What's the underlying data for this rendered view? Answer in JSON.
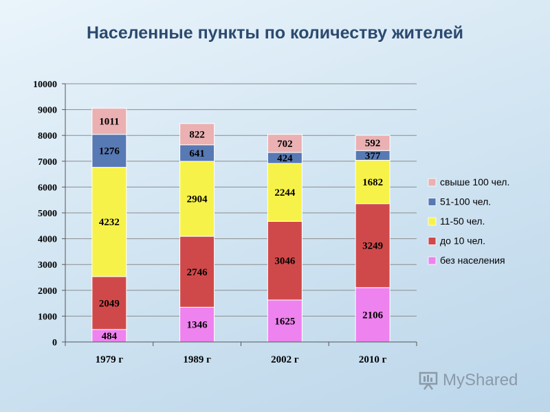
{
  "chart_data": {
    "type": "bar",
    "stacked": true,
    "title": "Населенные пункты по количеству жителей",
    "categories": [
      "1979 г",
      "1989 г",
      "2002 г",
      "2010 г"
    ],
    "ylim": [
      0,
      10000
    ],
    "yticks": [
      0,
      1000,
      2000,
      3000,
      4000,
      5000,
      6000,
      7000,
      8000,
      9000,
      10000
    ],
    "grid": true,
    "legend_position": "right",
    "series": [
      {
        "name": "без населения",
        "color": "#ee82ee",
        "values": [
          484,
          1346,
          1625,
          2106
        ]
      },
      {
        "name": "до 10 чел.",
        "color": "#d0494a",
        "values": [
          2049,
          2746,
          3046,
          3249
        ]
      },
      {
        "name": "11-50 чел.",
        "color": "#f7f24a",
        "values": [
          4232,
          2904,
          2244,
          1682
        ]
      },
      {
        "name": "51-100 чел.",
        "color": "#5779b4",
        "values": [
          1276,
          641,
          424,
          377
        ]
      },
      {
        "name": "свыше 100 чел.",
        "color": "#eab0b2",
        "values": [
          1011,
          822,
          702,
          592
        ]
      }
    ],
    "legend_order": [
      "свыше 100 чел.",
      "51-100 чел.",
      "11-50 чел.",
      "до 10 чел.",
      "без населения"
    ]
  },
  "watermark": {
    "text": "MyShared",
    "icon": "presentation-board-icon"
  }
}
